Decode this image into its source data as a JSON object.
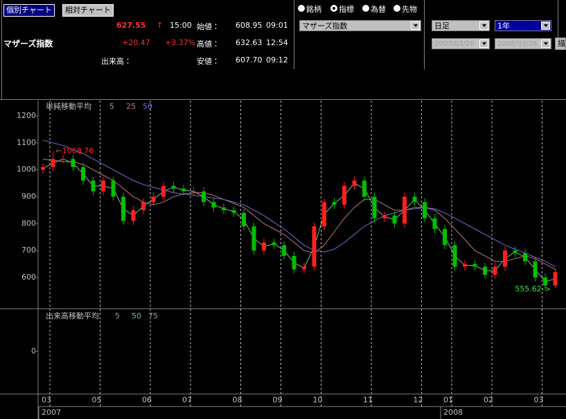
{
  "tabs": [
    "個別チャート",
    "相対チャート"
  ],
  "quote": {
    "name": "マザーズ指数",
    "price": "627.55",
    "arrow": "↑",
    "time": "15:00",
    "change": "+20.47",
    "change_pct": "+3.37%",
    "volume_label": "出来高：",
    "open_label": "始値：",
    "open": "608.95",
    "open_time": "09:01",
    "high_label": "高値：",
    "high": "632.63",
    "high_time": "12:54",
    "low_label": "安値：",
    "low": "607.70",
    "low_time": "09:12"
  },
  "radios": {
    "options": [
      "銘柄",
      "指標",
      "為替",
      "先物"
    ],
    "selected": 1
  },
  "selects": {
    "index": "マザーズ指数",
    "period": "日足",
    "range": "1年",
    "from": "2007/03/26",
    "to": "2008/03/26",
    "button": "描"
  },
  "chart_data": [
    {
      "type": "candlestick",
      "title": "単純移動平均",
      "categories": [
        "03",
        null,
        null,
        null,
        null,
        "05",
        null,
        null,
        null,
        null,
        "06",
        null,
        null,
        null,
        "07",
        null,
        null,
        null,
        null,
        "08",
        null,
        null,
        null,
        "09",
        null,
        null,
        null,
        "10",
        null,
        null,
        null,
        null,
        "11",
        null,
        null,
        null,
        null,
        "12",
        null,
        null,
        "01",
        null,
        null,
        null,
        "02",
        null,
        null,
        null,
        null,
        "03",
        null,
        null
      ],
      "year_labels": [
        "2007",
        null,
        null,
        null,
        null,
        null,
        null,
        null,
        null,
        null,
        null,
        null,
        null,
        null,
        null,
        null,
        null,
        null,
        null,
        null,
        null,
        null,
        null,
        null,
        null,
        null,
        null,
        null,
        null,
        null,
        null,
        null,
        null,
        null,
        null,
        null,
        null,
        null,
        null,
        null,
        "2008",
        null,
        null,
        null,
        null,
        null,
        null,
        null,
        null,
        null,
        null,
        null
      ],
      "open": [
        1000,
        1010,
        1040,
        1040,
        1010,
        960,
        920,
        960,
        900,
        810,
        850,
        880,
        900,
        940,
        930,
        920,
        920,
        880,
        860,
        850,
        840,
        790,
        700,
        730,
        720,
        680,
        630,
        640,
        790,
        880,
        870,
        940,
        960,
        900,
        820,
        830,
        800,
        900,
        880,
        820,
        780,
        720,
        640,
        650,
        640,
        610,
        640,
        700,
        690,
        660,
        600,
        570
      ],
      "high": [
        1025,
        1068.76,
        1055,
        1055,
        1025,
        975,
        975,
        975,
        915,
        865,
        895,
        915,
        955,
        955,
        945,
        935,
        935,
        895,
        875,
        865,
        855,
        805,
        745,
        745,
        735,
        695,
        655,
        805,
        895,
        895,
        955,
        975,
        975,
        915,
        845,
        845,
        915,
        915,
        895,
        835,
        795,
        735,
        665,
        665,
        655,
        655,
        715,
        715,
        705,
        675,
        615,
        635
      ],
      "low": [
        985,
        995,
        1025,
        995,
        945,
        905,
        905,
        885,
        795,
        795,
        835,
        865,
        885,
        915,
        905,
        905,
        865,
        845,
        835,
        825,
        775,
        685,
        685,
        705,
        665,
        615,
        615,
        625,
        775,
        855,
        855,
        925,
        885,
        805,
        805,
        785,
        785,
        865,
        805,
        765,
        705,
        625,
        625,
        625,
        595,
        595,
        625,
        675,
        645,
        585,
        555.62,
        560
      ],
      "close": [
        1010,
        1040,
        1040,
        1010,
        960,
        920,
        960,
        900,
        810,
        850,
        880,
        900,
        940,
        930,
        920,
        920,
        880,
        860,
        850,
        840,
        790,
        700,
        730,
        720,
        680,
        630,
        640,
        790,
        880,
        870,
        940,
        960,
        900,
        820,
        830,
        800,
        900,
        880,
        820,
        780,
        720,
        640,
        650,
        640,
        610,
        640,
        700,
        690,
        660,
        600,
        570,
        620
      ],
      "up_color": "#ff2020",
      "down_color": "#00c000",
      "max_label": "←1068.76",
      "min_label": "555.62->",
      "max_color": "#ff3030",
      "min_color": "#40e040",
      "series": [
        {
          "name": "5",
          "color": "#7fbf7f",
          "values": [
            1005,
            1025,
            1040,
            1025,
            985,
            940,
            940,
            930,
            855,
            830,
            865,
            890,
            920,
            935,
            925,
            920,
            900,
            870,
            855,
            845,
            815,
            745,
            715,
            725,
            700,
            655,
            635,
            715,
            835,
            875,
            905,
            950,
            930,
            860,
            825,
            815,
            850,
            890,
            850,
            800,
            750,
            680,
            645,
            645,
            625,
            625,
            670,
            695,
            675,
            630,
            585,
            595
          ]
        },
        {
          "name": "25",
          "color": "#c07878",
          "values": [
            1040,
            1035,
            1030,
            1030,
            1020,
            1000,
            980,
            960,
            930,
            900,
            880,
            870,
            880,
            900,
            910,
            915,
            915,
            905,
            890,
            875,
            860,
            830,
            800,
            780,
            760,
            730,
            700,
            690,
            720,
            770,
            820,
            860,
            890,
            890,
            870,
            850,
            850,
            860,
            860,
            850,
            820,
            780,
            740,
            700,
            680,
            660,
            660,
            670,
            680,
            670,
            650,
            630
          ]
        },
        {
          "name": "50",
          "color": "#7070e0",
          "values": [
            1110,
            1100,
            1090,
            1075,
            1060,
            1040,
            1020,
            1000,
            980,
            960,
            945,
            935,
            925,
            915,
            910,
            905,
            900,
            895,
            890,
            880,
            870,
            850,
            830,
            805,
            780,
            750,
            720,
            700,
            695,
            705,
            730,
            760,
            790,
            810,
            830,
            840,
            850,
            855,
            860,
            855,
            840,
            820,
            800,
            780,
            760,
            740,
            720,
            705,
            690,
            675,
            660,
            640
          ]
        }
      ],
      "ylim": [
        484,
        1257
      ],
      "yticks": [
        600,
        700,
        800,
        900,
        1000,
        1100,
        1200
      ],
      "grid": true
    },
    {
      "type": "volume",
      "title": "出来高移動平均",
      "series": [
        {
          "name": "5",
          "color": "#7f9fbf"
        },
        {
          "name": "50",
          "color": "#7fbf9f"
        },
        {
          "name": "75",
          "color": "#9f9f9f"
        }
      ],
      "ylim": [
        -1,
        1
      ],
      "yticks": [
        0
      ]
    }
  ]
}
